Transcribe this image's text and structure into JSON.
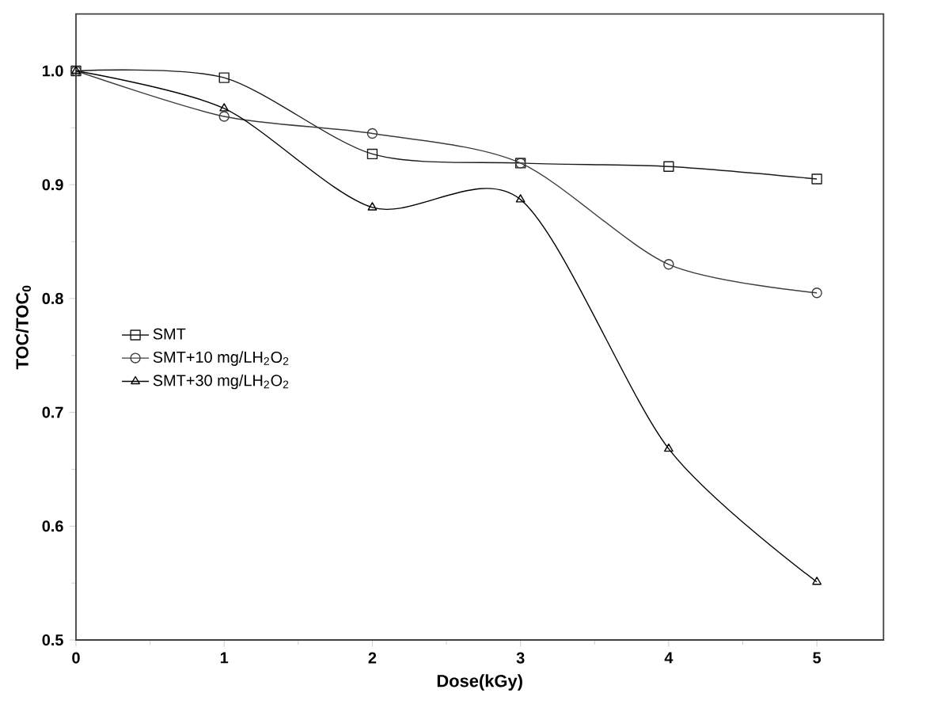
{
  "chart_data": {
    "type": "line",
    "xlabel": "Dose(kGy)",
    "ylabel": "TOC/TOC$_{0}$",
    "x": [
      0,
      1,
      2,
      3,
      4,
      5
    ],
    "xlim": [
      0,
      5.45
    ],
    "ylim": [
      0.5,
      1.05
    ],
    "xticks": [
      0,
      1,
      2,
      3,
      4,
      5
    ],
    "yticks": [
      {
        "value": 0.5,
        "label": "0.5"
      },
      {
        "value": 0.6,
        "label": "0.6"
      },
      {
        "value": 0.7,
        "label": "0.7"
      },
      {
        "value": 0.8,
        "label": "0.8"
      },
      {
        "value": 0.9,
        "label": "0.9"
      },
      {
        "value": 1.0,
        "label": "1.0"
      }
    ],
    "legend": "left",
    "grid": false,
    "series": [
      {
        "name": "SMT",
        "color": "#1a1a1a",
        "marker": "square",
        "values": [
          1.0,
          0.994,
          0.927,
          0.919,
          0.916,
          0.905
        ]
      },
      {
        "name": "SMT+10 mg/LH$_{2}$O$_{2}$",
        "color": "#3c3c3c",
        "marker": "circle",
        "values": [
          1.0,
          0.96,
          0.945,
          0.919,
          0.83,
          0.805
        ]
      },
      {
        "name": "SMT+30 mg/LH$_{2}$O$_{2}$",
        "color": "#000000",
        "marker": "triangle",
        "values": [
          1.0,
          0.967,
          0.88,
          0.887,
          0.668,
          0.551
        ]
      }
    ]
  }
}
